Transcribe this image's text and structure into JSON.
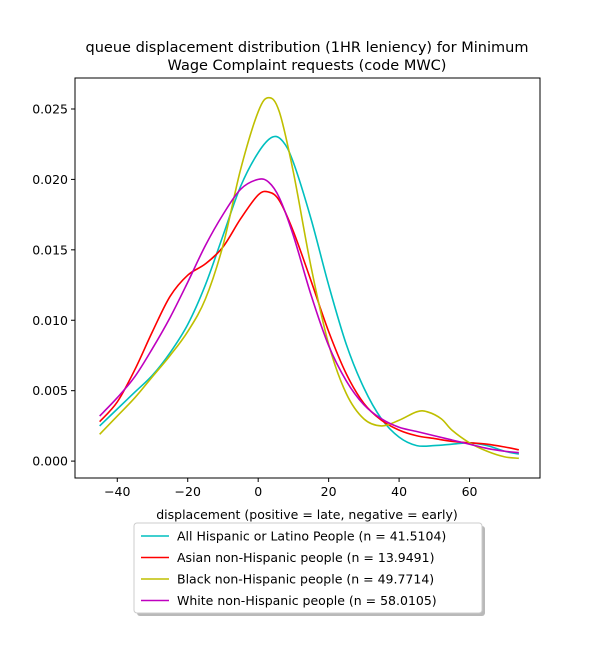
{
  "chart_data": {
    "type": "line",
    "title_line1": "queue displacement distribution (1HR leniency) for Minimum",
    "title_line2": "Wage Complaint  requests (code MWC)",
    "xlabel": "displacement (positive = late, negative = early)",
    "ylabel": "",
    "xlim": [
      -52,
      80
    ],
    "ylim": [
      -0.0012,
      0.0272
    ],
    "xticks": [
      -40,
      -20,
      0,
      20,
      40,
      60
    ],
    "xtick_labels": [
      "−40",
      "−20",
      "0",
      "20",
      "40",
      "60"
    ],
    "yticks": [
      0.0,
      0.005,
      0.01,
      0.015,
      0.02,
      0.025
    ],
    "ytick_labels": [
      "0.000",
      "0.005",
      "0.010",
      "0.015",
      "0.020",
      "0.025"
    ],
    "grid": false,
    "legend_position": "below",
    "series": [
      {
        "name": "All Hispanic or Latino People (n = 41.5104)",
        "color": "#00bfbf",
        "points": [
          [
            -45,
            0.0025
          ],
          [
            -40,
            0.0037
          ],
          [
            -35,
            0.0049
          ],
          [
            -30,
            0.0061
          ],
          [
            -25,
            0.0077
          ],
          [
            -20,
            0.0097
          ],
          [
            -15,
            0.0125
          ],
          [
            -10,
            0.016
          ],
          [
            -5,
            0.0195
          ],
          [
            0,
            0.0219
          ],
          [
            4,
            0.023
          ],
          [
            7,
            0.0227
          ],
          [
            10,
            0.0212
          ],
          [
            15,
            0.0172
          ],
          [
            20,
            0.0125
          ],
          [
            25,
            0.0083
          ],
          [
            30,
            0.0052
          ],
          [
            35,
            0.003
          ],
          [
            40,
            0.0017
          ],
          [
            45,
            0.0011
          ],
          [
            50,
            0.0011
          ],
          [
            55,
            0.0012
          ],
          [
            60,
            0.0013
          ],
          [
            65,
            0.0011
          ],
          [
            70,
            0.0007
          ],
          [
            74,
            0.0005
          ]
        ]
      },
      {
        "name": "Asian non-Hispanic people (n = 13.9491)",
        "color": "#ff0000",
        "points": [
          [
            -45,
            0.0028
          ],
          [
            -40,
            0.0042
          ],
          [
            -35,
            0.0065
          ],
          [
            -30,
            0.0092
          ],
          [
            -25,
            0.0117
          ],
          [
            -20,
            0.0132
          ],
          [
            -15,
            0.014
          ],
          [
            -10,
            0.0152
          ],
          [
            -5,
            0.0172
          ],
          [
            0,
            0.0189
          ],
          [
            3,
            0.0191
          ],
          [
            6,
            0.0185
          ],
          [
            10,
            0.0163
          ],
          [
            15,
            0.0128
          ],
          [
            20,
            0.0092
          ],
          [
            25,
            0.0062
          ],
          [
            30,
            0.0041
          ],
          [
            35,
            0.0029
          ],
          [
            40,
            0.0022
          ],
          [
            45,
            0.0018
          ],
          [
            50,
            0.0016
          ],
          [
            55,
            0.0014
          ],
          [
            60,
            0.0013
          ],
          [
            65,
            0.0012
          ],
          [
            70,
            0.001
          ],
          [
            74,
            0.0008
          ]
        ]
      },
      {
        "name": "Black non-Hispanic people (n = 49.7714)",
        "color": "#bfbf00",
        "points": [
          [
            -45,
            0.0019
          ],
          [
            -40,
            0.0032
          ],
          [
            -35,
            0.0045
          ],
          [
            -30,
            0.006
          ],
          [
            -25,
            0.0075
          ],
          [
            -20,
            0.0092
          ],
          [
            -15,
            0.0115
          ],
          [
            -10,
            0.0153
          ],
          [
            -5,
            0.0207
          ],
          [
            0,
            0.0248
          ],
          [
            3,
            0.0258
          ],
          [
            6,
            0.0248
          ],
          [
            10,
            0.0205
          ],
          [
            15,
            0.0138
          ],
          [
            20,
            0.0083
          ],
          [
            25,
            0.0048
          ],
          [
            30,
            0.003
          ],
          [
            35,
            0.0025
          ],
          [
            40,
            0.0029
          ],
          [
            45,
            0.0035
          ],
          [
            48,
            0.0035
          ],
          [
            52,
            0.003
          ],
          [
            55,
            0.0022
          ],
          [
            60,
            0.0013
          ],
          [
            65,
            0.0007
          ],
          [
            70,
            0.0003
          ],
          [
            74,
            0.0002
          ]
        ]
      },
      {
        "name": "White non-Hispanic people (n = 58.0105)",
        "color": "#bf00bf",
        "points": [
          [
            -45,
            0.0032
          ],
          [
            -40,
            0.0045
          ],
          [
            -35,
            0.006
          ],
          [
            -30,
            0.008
          ],
          [
            -25,
            0.0102
          ],
          [
            -20,
            0.0127
          ],
          [
            -15,
            0.0153
          ],
          [
            -10,
            0.0175
          ],
          [
            -5,
            0.0193
          ],
          [
            0,
            0.02
          ],
          [
            3,
            0.0198
          ],
          [
            6,
            0.0187
          ],
          [
            10,
            0.016
          ],
          [
            15,
            0.0118
          ],
          [
            20,
            0.0082
          ],
          [
            25,
            0.0057
          ],
          [
            30,
            0.004
          ],
          [
            35,
            0.003
          ],
          [
            40,
            0.0024
          ],
          [
            45,
            0.0021
          ],
          [
            50,
            0.0018
          ],
          [
            55,
            0.0015
          ],
          [
            60,
            0.0012
          ],
          [
            65,
            0.0009
          ],
          [
            70,
            0.0007
          ],
          [
            74,
            0.0006
          ]
        ]
      }
    ]
  }
}
